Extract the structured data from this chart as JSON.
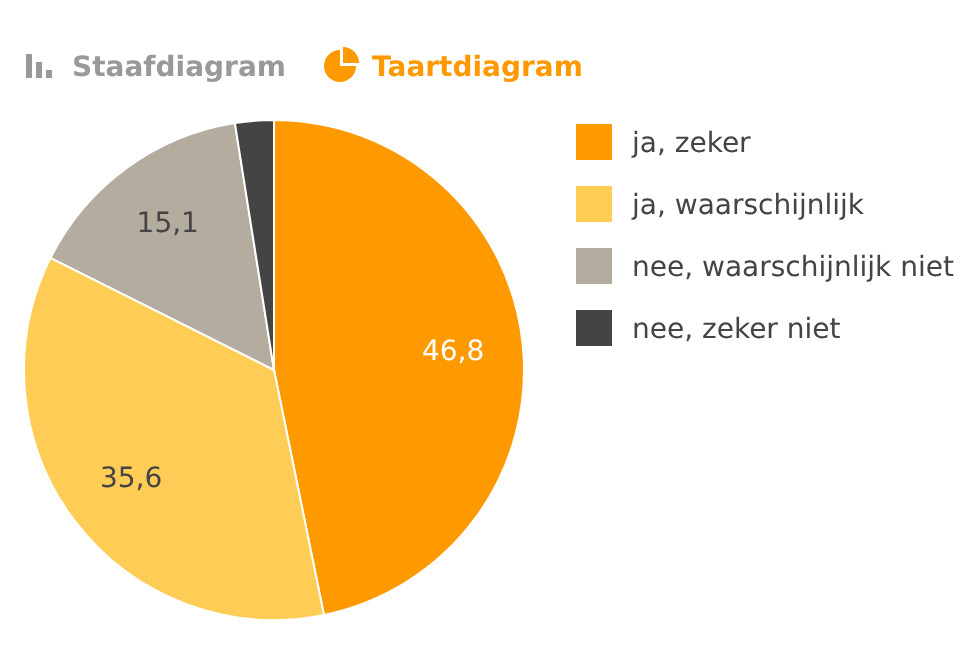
{
  "chart_data": {
    "type": "pie",
    "categories": [
      "ja, zeker",
      "ja, waarschijnlijk",
      "nee, waarschijnlijk niet",
      "nee, zeker niet"
    ],
    "values": [
      46.8,
      35.6,
      15.1,
      2.5
    ],
    "colors": [
      "#ff9900",
      "#ffcc55",
      "#b5aca0",
      "#444444"
    ],
    "value_labels": [
      "46,8",
      "35,6",
      "15,1",
      null
    ],
    "legend": "right",
    "annotations": [
      "Staafdiagram",
      "Taartdiagram"
    ]
  }
}
